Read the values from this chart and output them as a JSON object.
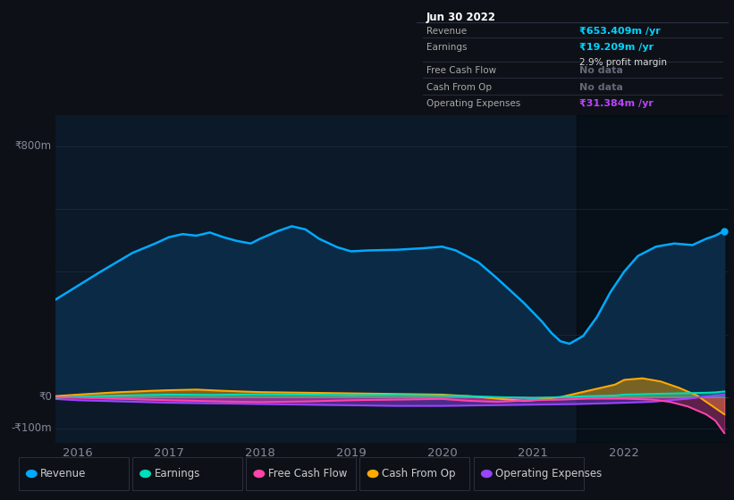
{
  "background_color": "#0d1117",
  "chart_bg": "#0c1929",
  "title_box": {
    "date": "Jun 30 2022",
    "rows": [
      {
        "label": "Revenue",
        "value": "₹653.409m /yr",
        "value_color": "#00d4ff",
        "sub": null
      },
      {
        "label": "Earnings",
        "value": "₹19.209m /yr",
        "value_color": "#00d4ff",
        "sub": "2.9% profit margin"
      },
      {
        "label": "Free Cash Flow",
        "value": "No data",
        "value_color": "#666677",
        "sub": null
      },
      {
        "label": "Cash From Op",
        "value": "No data",
        "value_color": "#666677",
        "sub": null
      },
      {
        "label": "Operating Expenses",
        "value": "₹31.384m /yr",
        "value_color": "#bb44ff",
        "sub": null
      }
    ]
  },
  "ylim": [
    -145,
    900
  ],
  "x_years": [
    2016,
    2017,
    2018,
    2019,
    2020,
    2021,
    2022
  ],
  "revenue": {
    "x": [
      2015.75,
      2016.0,
      2016.25,
      2016.6,
      2016.85,
      2017.0,
      2017.15,
      2017.3,
      2017.45,
      2017.6,
      2017.75,
      2017.9,
      2018.0,
      2018.2,
      2018.35,
      2018.5,
      2018.65,
      2018.85,
      2019.0,
      2019.2,
      2019.5,
      2019.8,
      2020.0,
      2020.15,
      2020.4,
      2020.6,
      2020.75,
      2020.9,
      2021.0,
      2021.1,
      2021.2,
      2021.3,
      2021.4,
      2021.55,
      2021.7,
      2021.85,
      2022.0,
      2022.15,
      2022.35,
      2022.55,
      2022.75,
      2022.9,
      2023.0,
      2023.1
    ],
    "y": [
      310,
      355,
      400,
      460,
      490,
      510,
      520,
      515,
      525,
      510,
      498,
      490,
      505,
      530,
      545,
      535,
      505,
      478,
      465,
      468,
      470,
      475,
      480,
      468,
      430,
      380,
      340,
      300,
      270,
      240,
      205,
      178,
      170,
      195,
      255,
      335,
      400,
      450,
      480,
      490,
      485,
      505,
      515,
      530
    ],
    "color": "#00aaff",
    "fill_color": "#0a2a45",
    "linewidth": 1.8
  },
  "earnings": {
    "x": [
      2015.75,
      2016.0,
      2016.5,
      2017.0,
      2017.5,
      2018.0,
      2018.5,
      2019.0,
      2019.5,
      2020.0,
      2020.3,
      2020.6,
      2020.9,
      2021.0,
      2021.3,
      2021.6,
      2021.9,
      2022.0,
      2022.3,
      2022.6,
      2022.9,
      2023.0,
      2023.1
    ],
    "y": [
      -3,
      2,
      5,
      8,
      7,
      9,
      8,
      6,
      7,
      5,
      3,
      0,
      -2,
      -3,
      0,
      3,
      5,
      8,
      10,
      12,
      14,
      15,
      18
    ],
    "color": "#00ddbb",
    "fill_color": "#00ddbb",
    "linewidth": 1.4
  },
  "free_cash_flow": {
    "x": [
      2015.75,
      2016.0,
      2016.5,
      2017.0,
      2017.3,
      2017.6,
      2018.0,
      2018.5,
      2019.0,
      2019.5,
      2020.0,
      2020.3,
      2020.6,
      2021.0,
      2021.3,
      2021.6,
      2022.0,
      2022.3,
      2022.5,
      2022.7,
      2022.9,
      2023.0,
      2023.1
    ],
    "y": [
      -1,
      -2,
      -6,
      -10,
      -12,
      -14,
      -16,
      -14,
      -10,
      -8,
      -6,
      -12,
      -15,
      -10,
      -8,
      -5,
      -5,
      -8,
      -15,
      -30,
      -55,
      -75,
      -115
    ],
    "color": "#ff44aa",
    "fill_color": "#ff44aa",
    "linewidth": 1.4
  },
  "cash_from_op": {
    "x": [
      2015.75,
      2016.0,
      2016.4,
      2016.8,
      2017.0,
      2017.3,
      2017.6,
      2018.0,
      2018.5,
      2019.0,
      2019.5,
      2020.0,
      2020.3,
      2020.6,
      2020.9,
      2021.0,
      2021.3,
      2021.6,
      2021.9,
      2022.0,
      2022.2,
      2022.4,
      2022.6,
      2022.8,
      2023.0,
      2023.1
    ],
    "y": [
      3,
      8,
      15,
      20,
      22,
      24,
      20,
      16,
      14,
      12,
      10,
      8,
      3,
      -5,
      -12,
      -10,
      0,
      20,
      40,
      55,
      60,
      50,
      30,
      5,
      -35,
      -55
    ],
    "color": "#ffaa00",
    "fill_color": "#ffaa00",
    "linewidth": 1.4
  },
  "operating_expenses": {
    "x": [
      2015.75,
      2016.0,
      2016.5,
      2017.0,
      2017.5,
      2018.0,
      2018.5,
      2019.0,
      2019.5,
      2020.0,
      2020.5,
      2021.0,
      2021.5,
      2022.0,
      2022.3,
      2022.5,
      2022.7,
      2022.9,
      2023.0,
      2023.1
    ],
    "y": [
      -6,
      -10,
      -14,
      -18,
      -20,
      -22,
      -24,
      -26,
      -28,
      -28,
      -26,
      -24,
      -22,
      -18,
      -15,
      -10,
      -5,
      2,
      5,
      8
    ],
    "color": "#9944ff",
    "fill_color": "#9944ff",
    "linewidth": 1.4
  },
  "legend": [
    {
      "label": "Revenue",
      "color": "#00aaff"
    },
    {
      "label": "Earnings",
      "color": "#00ddbb"
    },
    {
      "label": "Free Cash Flow",
      "color": "#ff44aa"
    },
    {
      "label": "Cash From Op",
      "color": "#ffaa00"
    },
    {
      "label": "Operating Expenses",
      "color": "#9944ff"
    }
  ],
  "xmin": 2015.75,
  "xmax": 2023.15,
  "highlight_x_start": 2021.48,
  "grid_lines_y": [
    800,
    600,
    400,
    200,
    0,
    -100
  ]
}
